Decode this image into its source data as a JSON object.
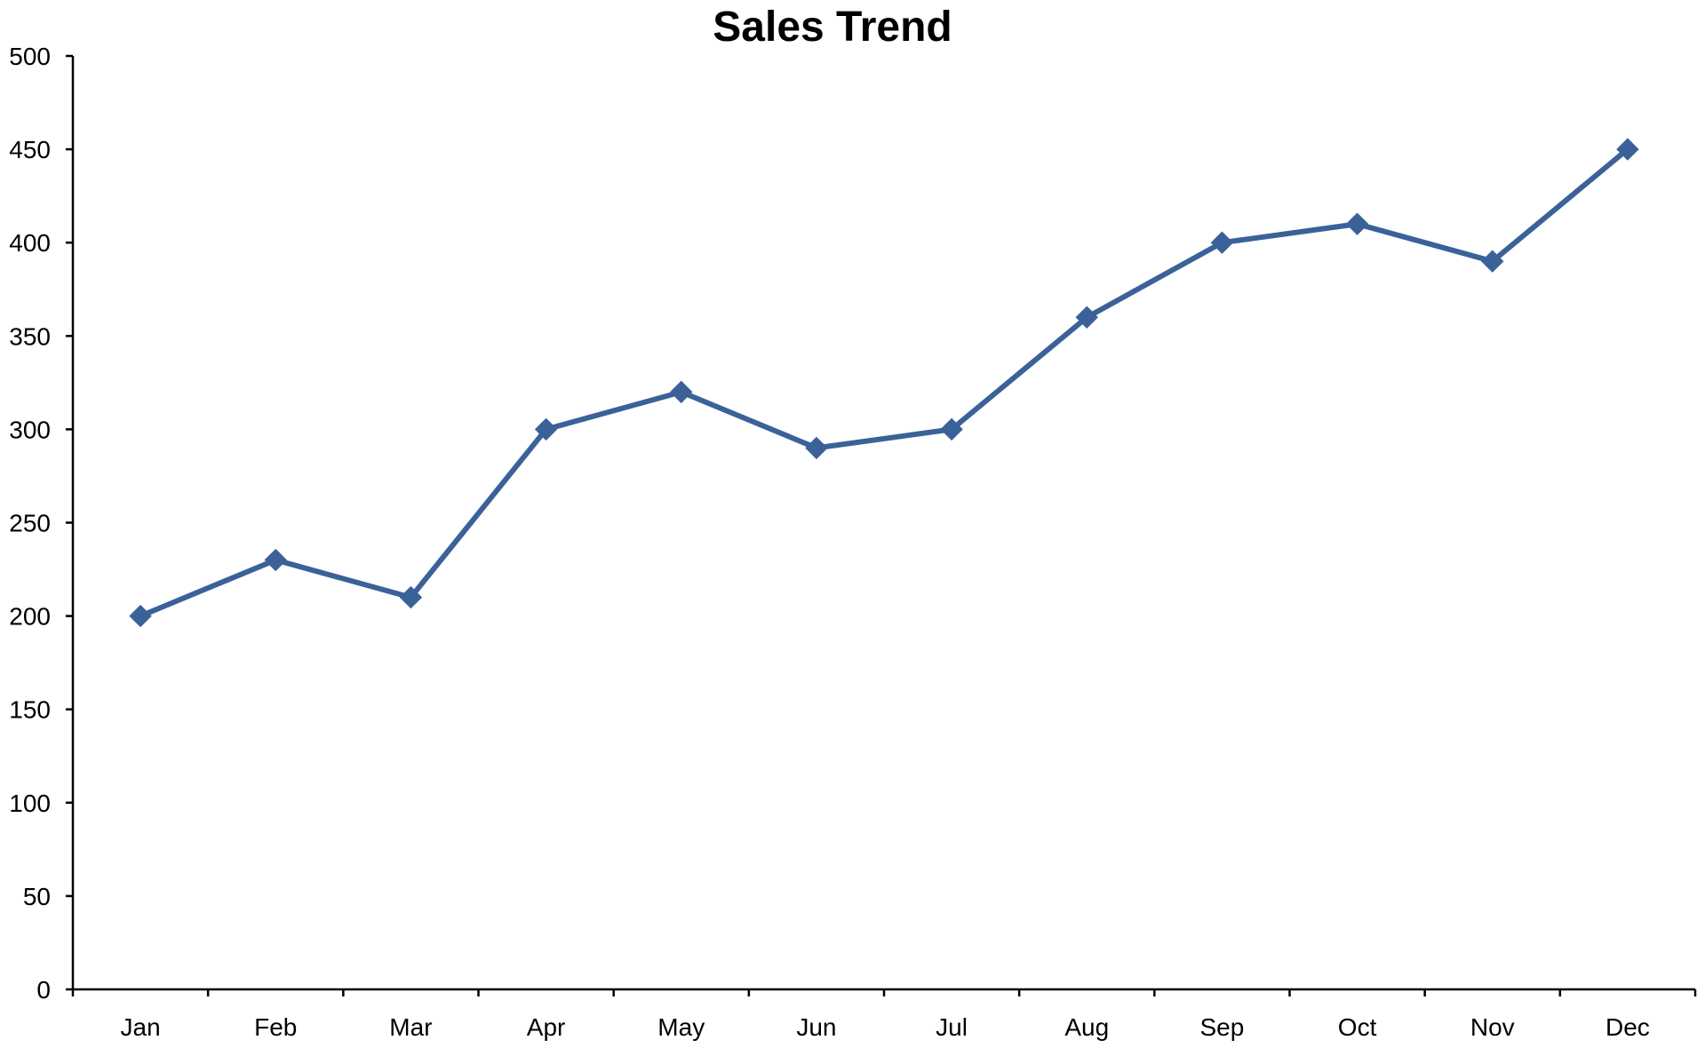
{
  "chart_data": {
    "type": "line",
    "title": "Sales Trend",
    "xlabel": "",
    "ylabel": "",
    "categories": [
      "Jan",
      "Feb",
      "Mar",
      "Apr",
      "May",
      "Jun",
      "Jul",
      "Aug",
      "Sep",
      "Oct",
      "Nov",
      "Dec"
    ],
    "series": [
      {
        "values": [
          200,
          230,
          210,
          300,
          320,
          290,
          300,
          360,
          400,
          410,
          390,
          450
        ],
        "color": "#3A6299",
        "marker": "diamond"
      }
    ],
    "ylim": [
      0,
      500
    ],
    "yticks": [
      0,
      50,
      100,
      150,
      200,
      250,
      300,
      350,
      400,
      450,
      500
    ],
    "grid": false,
    "legend": "none"
  }
}
